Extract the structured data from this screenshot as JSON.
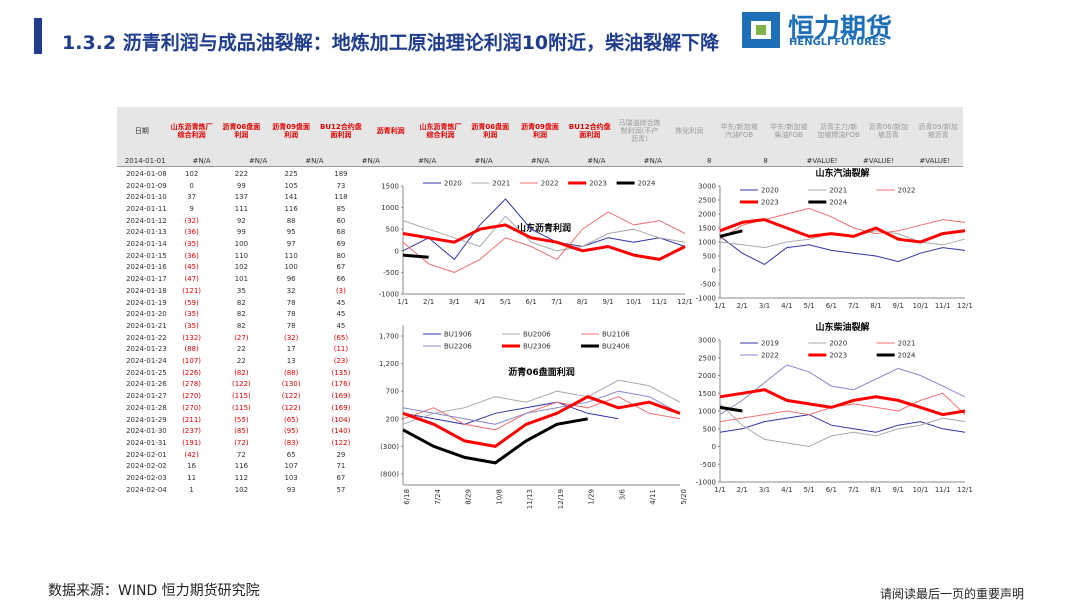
{
  "header": {
    "title": "1.3.2 沥青利润与成品油裂解：地炼加工原油理论利润10附近，柴油裂解下降",
    "logo_name": "恒力期货",
    "logo_english": "HENGLI FUTURES"
  },
  "table": {
    "columns": [
      "日期",
      "山东沥青炼厂综合利润",
      "沥青06盘面利润",
      "沥青09盘面利润",
      "BU12合约盘面利润",
      "沥青利润",
      "山东沥青炼厂综合利润",
      "沥青06盘面利润",
      "沥青09盘面利润",
      "BU12合约盘面利润",
      "马瑞油综合炼制利润(不产沥青)",
      "焦化利润",
      "华东/新加坡汽油FOB",
      "华东/新加坡柴油FOB",
      "沥青主力/新加坡燃油FOB",
      "沥青06/新加坡沥青",
      "沥青09/新加坡沥青"
    ],
    "first_row": [
      "2014-01-01",
      "#N/A",
      "#N/A",
      "#N/A",
      "#N/A",
      "#N/A",
      "#N/A",
      "#N/A",
      "#N/A",
      "#N/A",
      "8",
      "8",
      "#VALUE!",
      "#VALUE!",
      "#VALUE!"
    ],
    "rows": [
      [
        "2024-01-08",
        "102",
        "222",
        "225",
        "189"
      ],
      [
        "2024-01-09",
        "0",
        "99",
        "105",
        "73"
      ],
      [
        "2024-01-10",
        "37",
        "137",
        "141",
        "118"
      ],
      [
        "2024-01-11",
        "9",
        "111",
        "116",
        "85"
      ],
      [
        "2024-01-12",
        "(32)",
        "92",
        "88",
        "60"
      ],
      [
        "2024-01-13",
        "(36)",
        "99",
        "95",
        "68"
      ],
      [
        "2024-01-14",
        "(35)",
        "100",
        "97",
        "69"
      ],
      [
        "2024-01-15",
        "(36)",
        "110",
        "110",
        "80"
      ],
      [
        "2024-01-16",
        "(45)",
        "102",
        "100",
        "67"
      ],
      [
        "2024-01-17",
        "(47)",
        "101",
        "96",
        "66"
      ],
      [
        "2024-01-18",
        "(121)",
        "35",
        "32",
        "(3)"
      ],
      [
        "2024-01-19",
        "(59)",
        "82",
        "78",
        "45"
      ],
      [
        "2024-01-20",
        "(35)",
        "82",
        "78",
        "45"
      ],
      [
        "2024-01-21",
        "(35)",
        "82",
        "78",
        "45"
      ],
      [
        "2024-01-22",
        "(132)",
        "(27)",
        "(32)",
        "(65)"
      ],
      [
        "2024-01-23",
        "(88)",
        "22",
        "17",
        "(11)"
      ],
      [
        "2024-01-24",
        "(107)",
        "22",
        "13",
        "(23)"
      ],
      [
        "2024-01-25",
        "(226)",
        "(82)",
        "(88)",
        "(135)"
      ],
      [
        "2024-01-26",
        "(278)",
        "(122)",
        "(130)",
        "(176)"
      ],
      [
        "2024-01-27",
        "(270)",
        "(115)",
        "(122)",
        "(169)"
      ],
      [
        "2024-01-28",
        "(270)",
        "(115)",
        "(122)",
        "(169)"
      ],
      [
        "2024-01-29",
        "(211)",
        "(55)",
        "(65)",
        "(104)"
      ],
      [
        "2024-01-30",
        "(237)",
        "(85)",
        "(95)",
        "(140)"
      ],
      [
        "2024-01-31",
        "(191)",
        "(72)",
        "(83)",
        "(122)"
      ],
      [
        "2024-02-01",
        "(42)",
        "72",
        "65",
        "29"
      ],
      [
        "2024-02-02",
        "16",
        "116",
        "107",
        "71"
      ],
      [
        "2024-02-03",
        "11",
        "112",
        "103",
        "67"
      ],
      [
        "2024-02-04",
        "1",
        "102",
        "93",
        "57"
      ]
    ]
  },
  "chart_data": [
    {
      "type": "line",
      "title": "山东沥青利润",
      "categories": [
        "1/1",
        "2/1",
        "3/1",
        "4/1",
        "5/1",
        "6/1",
        "7/1",
        "8/1",
        "9/1",
        "10/1",
        "11/1",
        "12/1"
      ],
      "ylim": [
        -1000,
        1500
      ],
      "yticks": [
        -1000,
        -500,
        0,
        500,
        1000,
        1500
      ],
      "series": [
        {
          "name": "2020",
          "color": "#3333aa",
          "width": 1,
          "values": [
            0,
            300,
            -200,
            600,
            1200,
            500,
            200,
            100,
            300,
            200,
            300,
            100
          ]
        },
        {
          "name": "2021",
          "color": "#aaaaaa",
          "width": 1,
          "values": [
            700,
            500,
            300,
            100,
            800,
            200,
            0,
            100,
            400,
            500,
            300,
            200
          ]
        },
        {
          "name": "2022",
          "color": "#f07070",
          "width": 1,
          "values": [
            200,
            -300,
            -500,
            -200,
            300,
            100,
            -200,
            500,
            900,
            600,
            700,
            400
          ]
        },
        {
          "name": "2023",
          "color": "#ff0000",
          "width": 3,
          "values": [
            400,
            300,
            200,
            500,
            600,
            300,
            200,
            0,
            100,
            -100,
            -200,
            100
          ]
        },
        {
          "name": "2024",
          "color": "#000000",
          "width": 3,
          "values": [
            -100,
            -150,
            null,
            null,
            null,
            null,
            null,
            null,
            null,
            null,
            null,
            null
          ]
        }
      ]
    },
    {
      "type": "line",
      "title": "山东汽油裂解",
      "categories": [
        "1/1",
        "2/1",
        "3/1",
        "4/1",
        "5/1",
        "6/1",
        "7/1",
        "8/1",
        "9/1",
        "10/1",
        "11/1",
        "12/1"
      ],
      "ylim": [
        -1000,
        3000
      ],
      "yticks": [
        -1000,
        -500,
        0,
        500,
        1000,
        1500,
        2000,
        2500,
        3000
      ],
      "series": [
        {
          "name": "2020",
          "color": "#3333aa",
          "width": 1,
          "values": [
            1200,
            600,
            200,
            800,
            900,
            700,
            600,
            500,
            300,
            600,
            800,
            700
          ]
        },
        {
          "name": "2021",
          "color": "#aaaaaa",
          "width": 1,
          "values": [
            1000,
            900,
            800,
            1000,
            1100,
            1300,
            1200,
            1400,
            1300,
            1000,
            900,
            1100
          ]
        },
        {
          "name": "2022",
          "color": "#f07070",
          "width": 1,
          "values": [
            1100,
            1600,
            1800,
            2000,
            2200,
            1900,
            1500,
            1300,
            1400,
            1600,
            1800,
            1700
          ]
        },
        {
          "name": "2023",
          "color": "#ff0000",
          "width": 3,
          "values": [
            1400,
            1700,
            1800,
            1500,
            1200,
            1300,
            1200,
            1500,
            1100,
            1000,
            1300,
            1400
          ]
        },
        {
          "name": "2024",
          "color": "#000000",
          "width": 3,
          "values": [
            1200,
            1400,
            null,
            null,
            null,
            null,
            null,
            null,
            null,
            null,
            null,
            null
          ]
        }
      ]
    },
    {
      "type": "line",
      "title": "沥青06盘面利润",
      "categories": [
        "6/18",
        "7/24",
        "8/29",
        "10/8",
        "11/13",
        "12/19",
        "1/29",
        "3/6",
        "4/11",
        "5/20"
      ],
      "ylim": [
        -1000,
        1900
      ],
      "yticks": [
        {
          "value": 1700,
          "label": "1,700"
        },
        {
          "value": 1200,
          "label": "1,200"
        },
        700,
        200,
        {
          "value": -300,
          "label": "(300)"
        },
        {
          "value": -800,
          "label": "(800)"
        }
      ],
      "series": [
        {
          "name": "BU1906",
          "color": "#3333aa",
          "width": 1,
          "values": [
            300,
            200,
            100,
            300,
            400,
            500,
            300,
            200,
            null,
            null
          ]
        },
        {
          "name": "BU2006",
          "color": "#aaaaaa",
          "width": 1,
          "values": [
            100,
            300,
            400,
            600,
            500,
            700,
            600,
            900,
            800,
            500
          ]
        },
        {
          "name": "BU2106",
          "color": "#f07070",
          "width": 1,
          "values": [
            200,
            400,
            100,
            0,
            300,
            500,
            400,
            600,
            300,
            200
          ]
        },
        {
          "name": "BU2206",
          "color": "#8888cc",
          "width": 1,
          "values": [
            400,
            300,
            200,
            100,
            300,
            400,
            500,
            700,
            600,
            300
          ]
        },
        {
          "name": "BU2306",
          "color": "#ff0000",
          "width": 3,
          "values": [
            300,
            100,
            -200,
            -300,
            100,
            300,
            600,
            400,
            500,
            300
          ]
        },
        {
          "name": "BU2406",
          "color": "#000000",
          "width": 3,
          "values": [
            0,
            -300,
            -500,
            -600,
            -200,
            100,
            200,
            null,
            null,
            null
          ]
        }
      ]
    },
    {
      "type": "line",
      "title": "山东柴油裂解",
      "categories": [
        "1/1",
        "2/1",
        "3/1",
        "4/1",
        "5/1",
        "6/1",
        "7/1",
        "8/1",
        "9/1",
        "10/1",
        "11/1",
        "12/1"
      ],
      "ylim": [
        -1000,
        3000
      ],
      "yticks": [
        -1000,
        -500,
        0,
        500,
        1000,
        1500,
        2000,
        2500,
        3000
      ],
      "series": [
        {
          "name": "2019",
          "color": "#3333aa",
          "width": 1,
          "values": [
            400,
            500,
            700,
            800,
            900,
            600,
            500,
            400,
            600,
            700,
            500,
            400
          ]
        },
        {
          "name": "2020",
          "color": "#aaaaaa",
          "width": 1,
          "values": [
            1200,
            600,
            200,
            100,
            0,
            300,
            400,
            300,
            500,
            600,
            800,
            700
          ]
        },
        {
          "name": "2021",
          "color": "#f07070",
          "width": 1,
          "values": [
            700,
            800,
            900,
            1000,
            900,
            1100,
            1200,
            1100,
            1000,
            1300,
            1500,
            900
          ]
        },
        {
          "name": "2022",
          "color": "#8888cc",
          "width": 1,
          "values": [
            900,
            1300,
            1800,
            2300,
            2100,
            1700,
            1600,
            1900,
            2200,
            2000,
            1700,
            1400
          ]
        },
        {
          "name": "2023",
          "color": "#ff0000",
          "width": 3,
          "values": [
            1400,
            1500,
            1600,
            1300,
            1200,
            1100,
            1300,
            1400,
            1300,
            1100,
            900,
            1000
          ]
        },
        {
          "name": "2024",
          "color": "#000000",
          "width": 3,
          "values": [
            1100,
            1000,
            null,
            null,
            null,
            null,
            null,
            null,
            null,
            null,
            null,
            null
          ]
        }
      ]
    }
  ],
  "footer": {
    "source": "数据来源：WIND 恒力期货研究院",
    "disclaimer": "请阅读最后一页的重要声明"
  }
}
